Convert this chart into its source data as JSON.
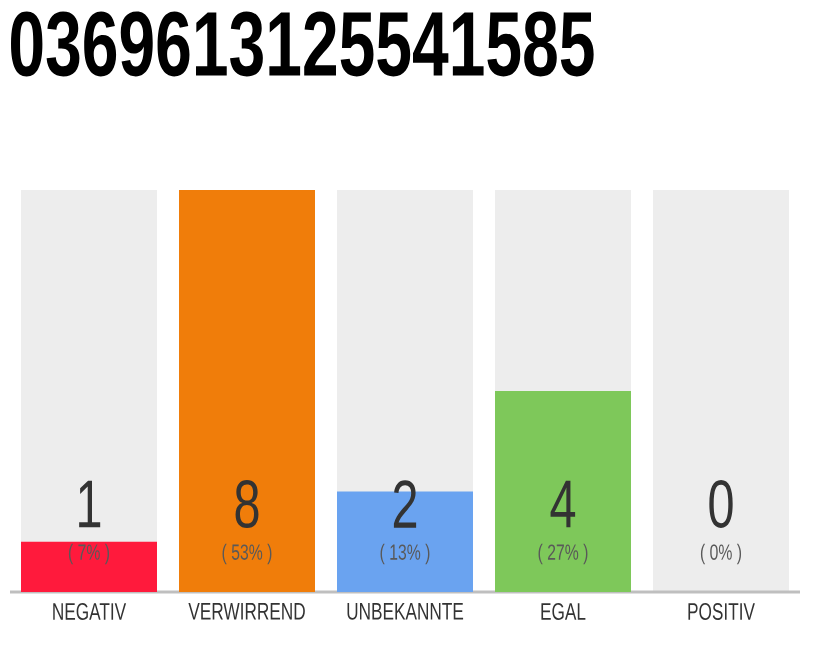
{
  "chart_data": {
    "type": "bar",
    "title": "0369613125541585",
    "categories": [
      "NEGATIV",
      "VERWIRREND",
      "UNBEKANNTE",
      "EGAL",
      "POSITIV"
    ],
    "values": [
      1,
      8,
      2,
      4,
      0
    ],
    "colors": [
      "#ff1a3c",
      "#f07d0a",
      "#6aa3f0",
      "#7ec85a",
      "#1e8c3c"
    ],
    "data_labels": true,
    "grid": "x",
    "annotations": [
      "( 7% )",
      "( 53% )",
      "( 13% )",
      "( 27% )",
      "( 0% )"
    ]
  }
}
